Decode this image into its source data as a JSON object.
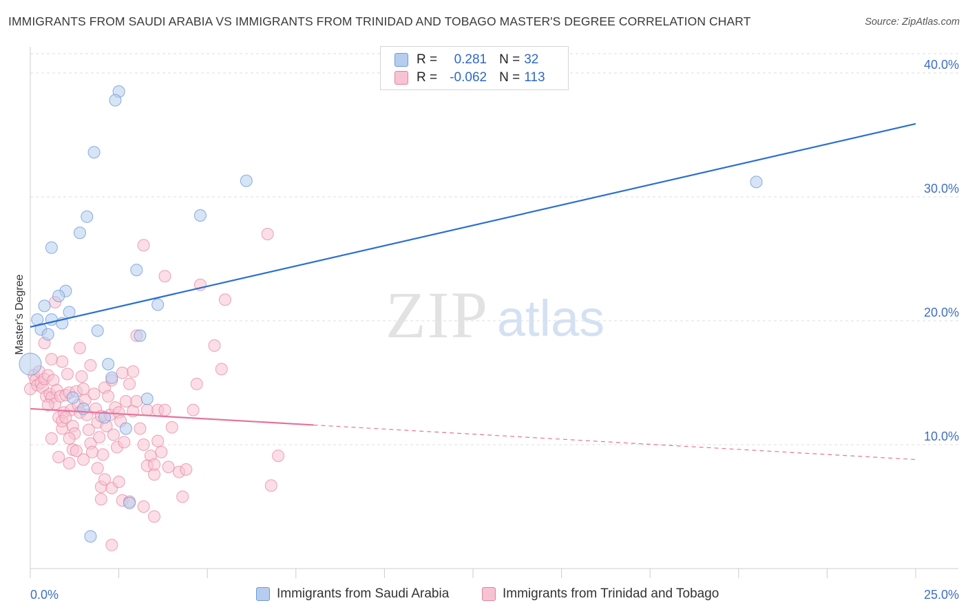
{
  "title": "IMMIGRANTS FROM SAUDI ARABIA VS IMMIGRANTS FROM TRINIDAD AND TOBAGO MASTER'S DEGREE CORRELATION CHART",
  "source": "Source: ZipAtlas.com",
  "watermark": {
    "zip": "ZIP",
    "atlas": "atlas"
  },
  "legend_top": {
    "rows": [
      {
        "r_label": "R =",
        "r_value": "0.281",
        "n_label": "N =",
        "n_value": "32"
      },
      {
        "r_label": "R =",
        "r_value": "-0.062",
        "n_label": "N =",
        "n_value": "113"
      }
    ]
  },
  "legend_bottom": {
    "items": [
      "Immigrants from Saudi Arabia",
      "Immigrants from Trinidad and Tobago"
    ]
  },
  "colors": {
    "blue_fill": "#b7cdef",
    "blue_stroke": "#6a9ad8",
    "blue_line": "#2a6fce",
    "pink_fill": "#f7c3d2",
    "pink_stroke": "#e47fa0",
    "pink_line": "#e8709a",
    "tick_label": "#3d6fc4",
    "grid": "#dddddd"
  },
  "chart_data": {
    "type": "scatter",
    "title": "IMMIGRANTS FROM SAUDI ARABIA VS IMMIGRANTS FROM TRINIDAD AND TOBAGO MASTER'S DEGREE CORRELATION CHART",
    "xlabel": "",
    "ylabel": "Master's Degree",
    "xlim": [
      0,
      25
    ],
    "ylim": [
      0,
      42
    ],
    "x_tick_labels": [
      "0.0%",
      "25.0%"
    ],
    "y_ticks": [
      10,
      20,
      30,
      40
    ],
    "y_tick_labels": [
      "10.0%",
      "20.0%",
      "30.0%",
      "40.0%"
    ],
    "grid": true,
    "legend_position": "top-center",
    "series": [
      {
        "name": "Immigrants from Saudi Arabia",
        "r": 0.281,
        "n": 32,
        "trend": {
          "x": [
            0,
            25
          ],
          "y": [
            19.5,
            35.9
          ],
          "dashed_from": null
        },
        "points": [
          [
            0.0,
            16.5
          ],
          [
            2.5,
            38.5
          ],
          [
            2.4,
            37.8
          ],
          [
            1.8,
            33.6
          ],
          [
            6.1,
            31.3
          ],
          [
            1.6,
            28.4
          ],
          [
            4.8,
            28.5
          ],
          [
            1.4,
            27.1
          ],
          [
            0.6,
            25.9
          ],
          [
            3.0,
            24.1
          ],
          [
            1.0,
            22.4
          ],
          [
            0.8,
            22.0
          ],
          [
            0.4,
            21.2
          ],
          [
            3.6,
            21.3
          ],
          [
            1.1,
            20.7
          ],
          [
            0.2,
            20.1
          ],
          [
            0.6,
            20.1
          ],
          [
            0.9,
            19.8
          ],
          [
            0.3,
            19.3
          ],
          [
            1.9,
            19.2
          ],
          [
            0.5,
            18.9
          ],
          [
            3.1,
            18.8
          ],
          [
            2.2,
            16.5
          ],
          [
            2.3,
            15.4
          ],
          [
            3.3,
            13.7
          ],
          [
            1.2,
            13.8
          ],
          [
            1.5,
            12.9
          ],
          [
            2.1,
            12.2
          ],
          [
            2.7,
            11.3
          ],
          [
            2.8,
            5.3
          ],
          [
            1.7,
            2.6
          ],
          [
            20.5,
            31.2
          ]
        ]
      },
      {
        "name": "Immigrants from Trinidad and Tobago",
        "r": -0.062,
        "n": 113,
        "trend": {
          "x": [
            0,
            25
          ],
          "y": [
            12.9,
            8.8
          ],
          "dashed_from": 8.0
        },
        "points": [
          [
            0.0,
            14.5
          ],
          [
            0.1,
            15.6
          ],
          [
            0.15,
            15.2
          ],
          [
            0.2,
            14.8
          ],
          [
            0.25,
            15.9
          ],
          [
            0.3,
            15.0
          ],
          [
            0.35,
            14.6
          ],
          [
            0.4,
            15.3
          ],
          [
            0.45,
            13.9
          ],
          [
            0.5,
            15.6
          ],
          [
            0.55,
            14.1
          ],
          [
            0.6,
            13.8
          ],
          [
            0.65,
            15.2
          ],
          [
            0.7,
            13.3
          ],
          [
            0.75,
            14.4
          ],
          [
            0.8,
            12.2
          ],
          [
            0.85,
            13.9
          ],
          [
            0.9,
            11.3
          ],
          [
            0.95,
            12.6
          ],
          [
            1.0,
            14.0
          ],
          [
            1.05,
            15.7
          ],
          [
            1.1,
            14.2
          ],
          [
            1.15,
            12.8
          ],
          [
            1.2,
            11.5
          ],
          [
            1.25,
            10.9
          ],
          [
            1.3,
            14.3
          ],
          [
            1.35,
            13.2
          ],
          [
            1.4,
            12.6
          ],
          [
            1.45,
            15.5
          ],
          [
            1.5,
            14.5
          ],
          [
            1.55,
            13.6
          ],
          [
            1.6,
            12.4
          ],
          [
            1.65,
            11.2
          ],
          [
            1.7,
            10.1
          ],
          [
            1.75,
            9.4
          ],
          [
            1.8,
            14.1
          ],
          [
            1.85,
            12.9
          ],
          [
            1.9,
            11.8
          ],
          [
            1.95,
            10.6
          ],
          [
            2.0,
            12.3
          ],
          [
            2.05,
            9.2
          ],
          [
            2.1,
            14.6
          ],
          [
            2.15,
            11.5
          ],
          [
            2.2,
            13.9
          ],
          [
            2.25,
            12.4
          ],
          [
            2.3,
            15.2
          ],
          [
            2.35,
            10.8
          ],
          [
            2.4,
            13.0
          ],
          [
            2.45,
            9.8
          ],
          [
            2.5,
            12.6
          ],
          [
            2.55,
            11.9
          ],
          [
            2.6,
            15.8
          ],
          [
            2.65,
            10.2
          ],
          [
            2.7,
            13.5
          ],
          [
            2.8,
            14.9
          ],
          [
            2.9,
            12.7
          ],
          [
            3.0,
            13.5
          ],
          [
            3.1,
            11.3
          ],
          [
            3.2,
            10.0
          ],
          [
            3.3,
            12.8
          ],
          [
            3.4,
            9.1
          ],
          [
            3.5,
            7.6
          ],
          [
            3.6,
            12.8
          ],
          [
            3.7,
            9.4
          ],
          [
            3.8,
            12.8
          ],
          [
            3.9,
            8.2
          ],
          [
            4.0,
            11.4
          ],
          [
            4.2,
            7.8
          ],
          [
            4.3,
            5.8
          ],
          [
            4.4,
            8.0
          ],
          [
            4.6,
            12.8
          ],
          [
            4.7,
            14.9
          ],
          [
            4.8,
            22.9
          ],
          [
            5.2,
            18.0
          ],
          [
            5.4,
            16.1
          ],
          [
            5.5,
            21.7
          ],
          [
            6.7,
            27.0
          ],
          [
            6.8,
            6.7
          ],
          [
            7.0,
            9.1
          ],
          [
            3.2,
            26.1
          ],
          [
            3.8,
            23.6
          ],
          [
            0.4,
            18.2
          ],
          [
            0.7,
            21.5
          ],
          [
            1.4,
            17.8
          ],
          [
            0.9,
            16.7
          ],
          [
            0.6,
            16.9
          ],
          [
            1.7,
            16.4
          ],
          [
            2.9,
            15.9
          ],
          [
            3.0,
            18.8
          ],
          [
            1.1,
            10.5
          ],
          [
            0.6,
            10.5
          ],
          [
            1.2,
            9.6
          ],
          [
            1.5,
            8.8
          ],
          [
            0.8,
            9.0
          ],
          [
            1.1,
            8.5
          ],
          [
            1.9,
            8.1
          ],
          [
            2.0,
            6.6
          ],
          [
            2.1,
            7.2
          ],
          [
            2.3,
            6.5
          ],
          [
            2.0,
            5.6
          ],
          [
            2.6,
            5.5
          ],
          [
            2.8,
            5.4
          ],
          [
            3.2,
            5.0
          ],
          [
            3.5,
            4.2
          ],
          [
            2.3,
            1.9
          ],
          [
            0.9,
            11.9
          ],
          [
            1.0,
            12.2
          ],
          [
            3.6,
            10.3
          ],
          [
            3.3,
            8.3
          ],
          [
            3.5,
            8.4
          ],
          [
            2.5,
            7.0
          ],
          [
            0.5,
            13.2
          ],
          [
            1.3,
            9.5
          ]
        ]
      }
    ]
  }
}
